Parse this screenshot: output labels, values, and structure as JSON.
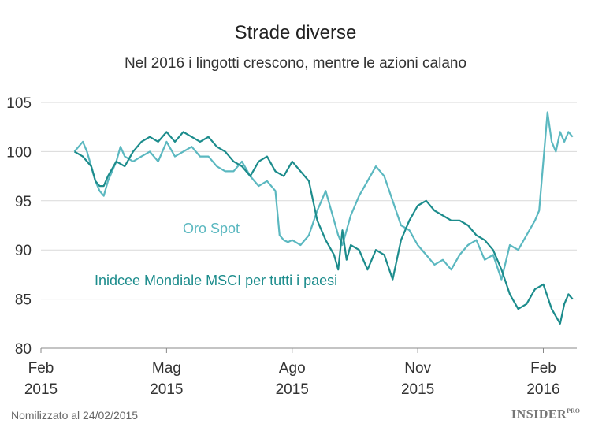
{
  "chart_data": {
    "type": "line",
    "title": "Strade diverse",
    "subtitle": "Nel 2016 i lingotti crescono, mentre le azioni calano",
    "xlabel": "",
    "ylabel": "",
    "x_range": [
      0,
      12.8
    ],
    "ylim": [
      80,
      105
    ],
    "y_ticks": [
      80,
      85,
      90,
      95,
      100,
      105
    ],
    "x_ticks": [
      {
        "pos": 0,
        "label_top": "Feb",
        "label_bottom": "2015"
      },
      {
        "pos": 3,
        "label_top": "Mag",
        "label_bottom": "2015"
      },
      {
        "pos": 6,
        "label_top": "Ago",
        "label_bottom": "2015"
      },
      {
        "pos": 9,
        "label_top": "Nov",
        "label_bottom": "2015"
      },
      {
        "pos": 12,
        "label_top": "Feb",
        "label_bottom": "2016"
      }
    ],
    "series": [
      {
        "name": "Oro Spot",
        "color": "#5bb8c0",
        "x": [
          0.8,
          0.9,
          1.0,
          1.1,
          1.2,
          1.3,
          1.4,
          1.5,
          1.6,
          1.7,
          1.8,
          1.9,
          2.0,
          2.2,
          2.4,
          2.6,
          2.8,
          3.0,
          3.2,
          3.4,
          3.6,
          3.8,
          4.0,
          4.2,
          4.4,
          4.6,
          4.8,
          5.0,
          5.2,
          5.4,
          5.6,
          5.7,
          5.8,
          5.9,
          6.0,
          6.2,
          6.4,
          6.6,
          6.8,
          7.0,
          7.1,
          7.2,
          7.4,
          7.6,
          7.8,
          8.0,
          8.2,
          8.4,
          8.6,
          8.8,
          9.0,
          9.2,
          9.4,
          9.6,
          9.8,
          10.0,
          10.2,
          10.4,
          10.6,
          10.8,
          11.0,
          11.2,
          11.4,
          11.6,
          11.8,
          11.9,
          12.0,
          12.1,
          12.2,
          12.3,
          12.4,
          12.5,
          12.6,
          12.7
        ],
        "values": [
          100.0,
          100.5,
          101.0,
          100.0,
          98.5,
          97.0,
          96.0,
          95.5,
          97.0,
          98.0,
          99.0,
          100.5,
          99.5,
          99.0,
          99.5,
          100.0,
          99.0,
          101.0,
          99.5,
          100.0,
          100.5,
          99.5,
          99.5,
          98.5,
          98.0,
          98.0,
          99.0,
          97.5,
          96.5,
          97.0,
          96.0,
          91.5,
          91.0,
          90.8,
          91.0,
          90.5,
          91.5,
          94.0,
          96.0,
          93.0,
          91.5,
          90.5,
          93.5,
          95.5,
          97.0,
          98.5,
          97.5,
          95.0,
          92.5,
          92.0,
          90.5,
          89.5,
          88.5,
          89.0,
          88.0,
          89.5,
          90.5,
          91.0,
          89.0,
          89.5,
          87.0,
          90.5,
          90.0,
          91.5,
          93.0,
          94.0,
          99.0,
          104.0,
          101.0,
          100.0,
          102.0,
          101.0,
          102.0,
          101.5
        ],
        "label": "Oro Spot"
      },
      {
        "name": "Inidcee Mondiale MSCI per tutti i paesi",
        "color": "#1c8c8c",
        "x": [
          0.8,
          1.0,
          1.2,
          1.3,
          1.4,
          1.5,
          1.6,
          1.8,
          2.0,
          2.2,
          2.4,
          2.6,
          2.8,
          3.0,
          3.2,
          3.4,
          3.6,
          3.8,
          4.0,
          4.2,
          4.4,
          4.6,
          4.8,
          5.0,
          5.2,
          5.4,
          5.6,
          5.8,
          6.0,
          6.2,
          6.4,
          6.6,
          6.8,
          7.0,
          7.1,
          7.2,
          7.3,
          7.4,
          7.6,
          7.8,
          8.0,
          8.2,
          8.4,
          8.6,
          8.8,
          9.0,
          9.2,
          9.4,
          9.6,
          9.8,
          10.0,
          10.2,
          10.4,
          10.6,
          10.8,
          11.0,
          11.2,
          11.4,
          11.6,
          11.8,
          12.0,
          12.2,
          12.4,
          12.5,
          12.6,
          12.7
        ],
        "values": [
          100.0,
          99.5,
          98.5,
          97.0,
          96.5,
          96.5,
          97.5,
          99.0,
          98.5,
          100.0,
          101.0,
          101.5,
          101.0,
          102.0,
          101.0,
          102.0,
          101.5,
          101.0,
          101.5,
          100.5,
          100.0,
          99.0,
          98.5,
          97.5,
          99.0,
          99.5,
          98.0,
          97.5,
          99.0,
          98.0,
          97.0,
          93.0,
          91.0,
          89.5,
          88.0,
          92.0,
          89.0,
          90.5,
          90.0,
          88.0,
          90.0,
          89.5,
          87.0,
          91.0,
          93.0,
          94.5,
          95.0,
          94.0,
          93.5,
          93.0,
          93.0,
          92.5,
          91.5,
          91.0,
          90.0,
          88.0,
          85.5,
          84.0,
          84.5,
          86.0,
          86.5,
          84.0,
          82.5,
          84.5,
          85.5,
          85.0
        ],
        "label": "Inidcee Mondiale MSCI per tutti i paesi"
      }
    ]
  },
  "footer": {
    "note": "Nomilizzato al 24/02/2015",
    "brand": "INSIDER",
    "brand_sup": "PRO"
  }
}
